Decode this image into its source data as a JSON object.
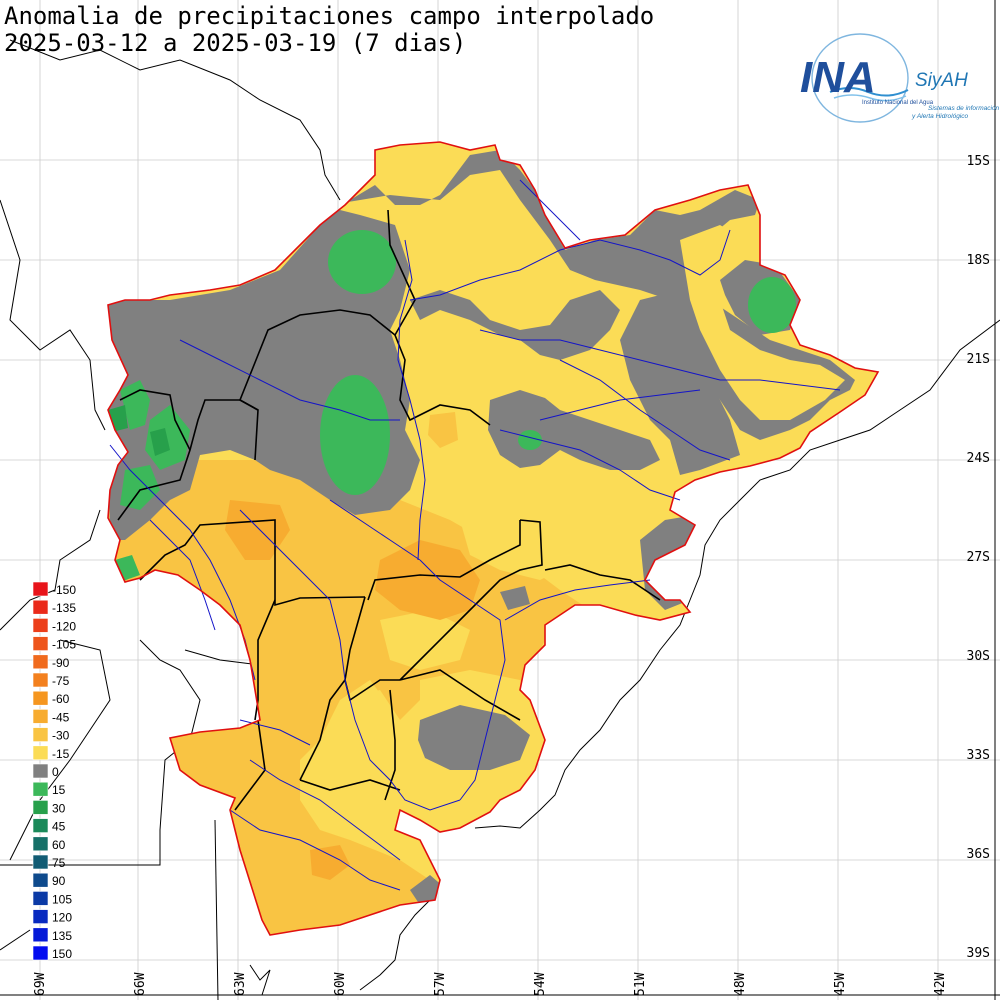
{
  "title": {
    "line1": "Anomalia de precipitaciones campo interpolado",
    "line2": "2025-03-12 a 2025-03-19 (7 dias)"
  },
  "logo": {
    "main": "INA",
    "sub": "SiyAH",
    "tagline": "Instituto Nacional del Agua",
    "caption_line1": "Sistemas de información",
    "caption_line2": "y Alerta Hidrológico"
  },
  "latitude_labels": [
    "15S",
    "18S",
    "21S",
    "24S",
    "27S",
    "30S",
    "33S",
    "36S",
    "39S"
  ],
  "longitude_labels": [
    "69W",
    "66W",
    "63W",
    "60W",
    "57W",
    "54W",
    "51W",
    "48W",
    "45W",
    "42W"
  ],
  "legend": [
    {
      "value": "-150",
      "color": "#e8141a"
    },
    {
      "value": "-135",
      "color": "#ea2a1a"
    },
    {
      "value": "-120",
      "color": "#ec3f1b"
    },
    {
      "value": "-105",
      "color": "#ee551c"
    },
    {
      "value": "-90",
      "color": "#f06a1d"
    },
    {
      "value": "-75",
      "color": "#f3801e"
    },
    {
      "value": "-60",
      "color": "#f5961f"
    },
    {
      "value": "-45",
      "color": "#f7ac30"
    },
    {
      "value": "-30",
      "color": "#f9c443"
    },
    {
      "value": "-15",
      "color": "#fbdc56"
    },
    {
      "value": "0",
      "color": "#808080"
    },
    {
      "value": "15",
      "color": "#3cb85a"
    },
    {
      "value": "30",
      "color": "#27a04b"
    },
    {
      "value": "45",
      "color": "#1b8a5a"
    },
    {
      "value": "60",
      "color": "#167068"
    },
    {
      "value": "75",
      "color": "#125c74"
    },
    {
      "value": "90",
      "color": "#0e4a8c"
    },
    {
      "value": "105",
      "color": "#0b3aa6"
    },
    {
      "value": "120",
      "color": "#082ac0"
    },
    {
      "value": "135",
      "color": "#051ad8"
    },
    {
      "value": "150",
      "color": "#030cf0"
    }
  ],
  "colors": {
    "basin_outline": "#e01010",
    "borders": "#000000",
    "rivers": "#1414c8",
    "logo_blue": "#1f4f9c"
  }
}
